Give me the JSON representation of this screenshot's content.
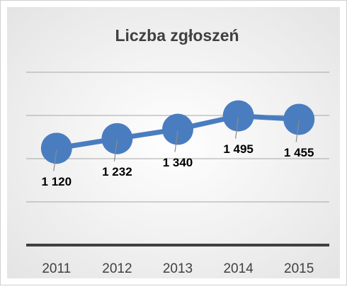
{
  "chart_data": {
    "type": "line",
    "title": "Liczba  zgłoszeń",
    "categories": [
      "2011",
      "2012",
      "2013",
      "2014",
      "2015"
    ],
    "values": [
      1120,
      1232,
      1340,
      1495,
      1455
    ],
    "value_labels": [
      "1 120",
      "1 232",
      "1 340",
      "1 495",
      "1 455"
    ],
    "color": "#4a7dc0",
    "ylim": [
      0,
      2000
    ],
    "yticks": [
      0,
      500,
      1000,
      1500,
      2000
    ],
    "grid": true
  }
}
